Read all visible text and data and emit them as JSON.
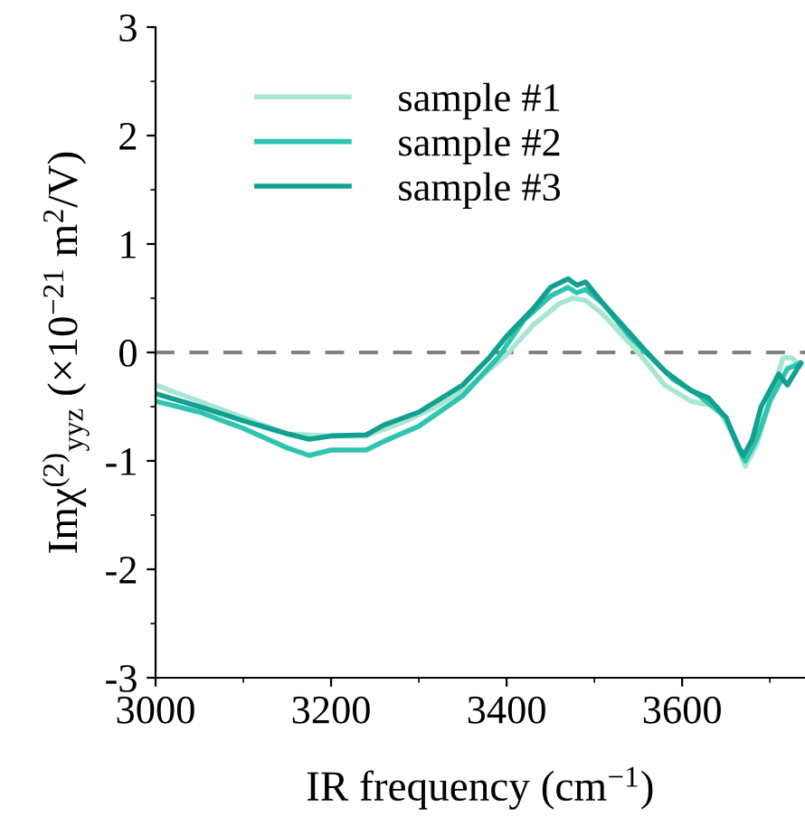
{
  "chart_data": {
    "type": "line",
    "xlabel": "IR frequency (cm$^{−1}$)",
    "ylabel": "Imχ$^{(2)}$$_{yyz}$ (×10$^{−21}$ m$^{2}$/V)",
    "xlim": [
      3000,
      3740
    ],
    "xticks": [
      3000,
      3200,
      3400,
      3600
    ],
    "ylim": [
      -3,
      3
    ],
    "yticks": [
      {
        "value": -3,
        "label": "-3"
      },
      {
        "value": -2,
        "label": "-2"
      },
      {
        "value": -1,
        "label": "-1"
      },
      0,
      1,
      2,
      3
    ],
    "grid": false,
    "legend": "top left",
    "line_style": "solid",
    "marker": "none",
    "ref_lines": [
      {
        "axis": "y",
        "value": 0,
        "color": "#808080",
        "line_style": "dashed"
      }
    ],
    "series": [
      {
        "name": "sample #1",
        "color": "#a8e6d4",
        "x": [
          3000,
          3050,
          3100,
          3150,
          3200,
          3240,
          3280,
          3320,
          3360,
          3400,
          3430,
          3460,
          3475,
          3490,
          3510,
          3550,
          3580,
          3610,
          3640,
          3660,
          3672,
          3685,
          3700,
          3715,
          3725,
          3735
        ],
        "values": [
          -0.3,
          -0.45,
          -0.6,
          -0.75,
          -0.77,
          -0.77,
          -0.65,
          -0.5,
          -0.3,
          -0.02,
          0.25,
          0.45,
          0.5,
          0.48,
          0.35,
          0.0,
          -0.3,
          -0.45,
          -0.5,
          -0.8,
          -1.05,
          -0.85,
          -0.45,
          -0.05,
          -0.05,
          -0.12
        ]
      },
      {
        "name": "sample #2",
        "color": "#2ec4b0",
        "x": [
          3000,
          3050,
          3100,
          3150,
          3175,
          3200,
          3240,
          3260,
          3300,
          3350,
          3390,
          3420,
          3450,
          3470,
          3480,
          3490,
          3510,
          3540,
          3565,
          3590,
          3620,
          3650,
          3665,
          3672,
          3685,
          3700,
          3720,
          3735
        ],
        "values": [
          -0.45,
          -0.55,
          -0.7,
          -0.88,
          -0.95,
          -0.9,
          -0.9,
          -0.82,
          -0.68,
          -0.4,
          -0.05,
          0.3,
          0.52,
          0.6,
          0.55,
          0.58,
          0.45,
          0.15,
          -0.05,
          -0.25,
          -0.4,
          -0.6,
          -0.9,
          -1.0,
          -0.8,
          -0.45,
          -0.15,
          -0.1
        ]
      },
      {
        "name": "sample #3",
        "color": "#12a090",
        "x": [
          3000,
          3050,
          3100,
          3150,
          3175,
          3200,
          3240,
          3260,
          3300,
          3350,
          3380,
          3400,
          3430,
          3450,
          3470,
          3480,
          3490,
          3510,
          3540,
          3560,
          3580,
          3610,
          3630,
          3650,
          3665,
          3670,
          3680,
          3690,
          3710,
          3720,
          3735
        ],
        "values": [
          -0.38,
          -0.5,
          -0.63,
          -0.75,
          -0.8,
          -0.77,
          -0.76,
          -0.67,
          -0.55,
          -0.3,
          -0.05,
          0.15,
          0.4,
          0.6,
          0.68,
          0.62,
          0.65,
          0.45,
          0.18,
          0.0,
          -0.17,
          -0.35,
          -0.42,
          -0.6,
          -0.88,
          -0.95,
          -0.8,
          -0.5,
          -0.2,
          -0.3,
          -0.1
        ]
      }
    ]
  }
}
